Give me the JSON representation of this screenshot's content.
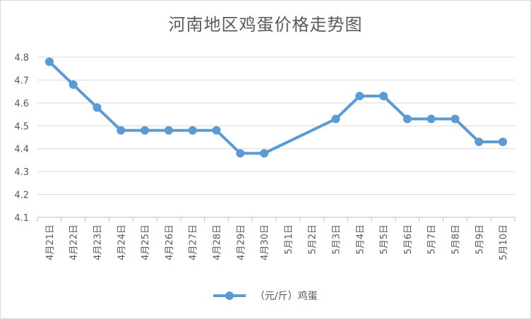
{
  "chart_data": {
    "type": "line",
    "title": "河南地区鸡蛋价格走势图",
    "categories": [
      "4月21日",
      "4月22日",
      "4月23日",
      "4月24日",
      "4月25日",
      "4月26日",
      "4月27日",
      "4月28日",
      "4月29日",
      "4月30日",
      "5月1日",
      "5月2日",
      "5月3日",
      "5月4日",
      "5月5日",
      "5月6日",
      "5月7日",
      "5月8日",
      "5月9日",
      "5月10日"
    ],
    "series": [
      {
        "name": "（元/斤）鸡蛋",
        "values": [
          4.78,
          4.68,
          4.58,
          4.48,
          4.48,
          4.48,
          4.48,
          4.48,
          4.38,
          4.38,
          null,
          null,
          4.53,
          4.63,
          4.63,
          4.53,
          4.53,
          4.53,
          4.43,
          4.43
        ]
      }
    ],
    "yticks": [
      "4.1",
      "4.2",
      "4.3",
      "4.4",
      "4.5",
      "4.6",
      "4.7",
      "4.8"
    ],
    "ylim": [
      4.1,
      4.8
    ],
    "grid": true,
    "legend": "bottom",
    "line_color": "#5b9bd5"
  }
}
